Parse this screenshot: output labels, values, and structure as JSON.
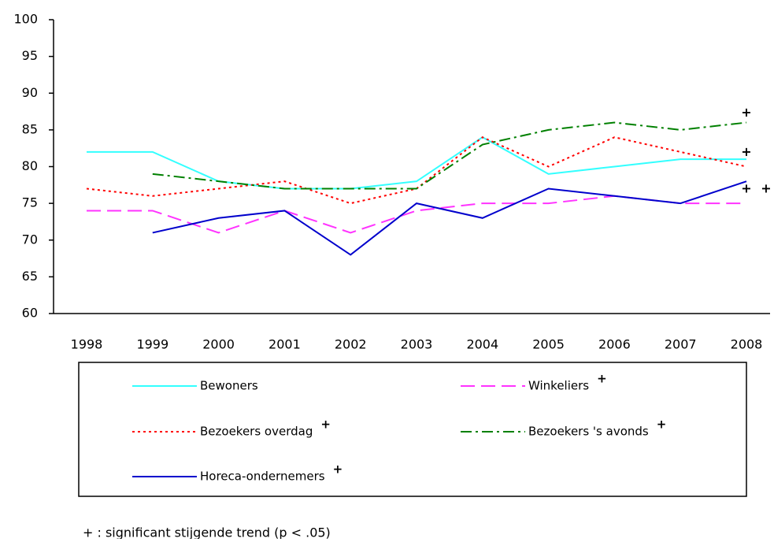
{
  "chart_data": {
    "type": "line",
    "categories": [
      "1998",
      "1999",
      "2000",
      "2001",
      "2002",
      "2003",
      "2004",
      "2005",
      "2006",
      "2007",
      "2008"
    ],
    "series": [
      {
        "name": "Bewoners",
        "color": "#33ffff",
        "dash": "solid",
        "values": [
          82,
          82,
          78,
          77,
          77,
          78,
          84,
          79,
          80,
          81,
          81
        ]
      },
      {
        "name": "Winkeliers",
        "color": "#ff33ff",
        "dash": "dashed",
        "significance_marker": "+",
        "values": [
          74,
          74,
          71,
          74,
          71,
          74,
          75,
          75,
          76,
          75,
          75
        ]
      },
      {
        "name": "Bezoekers overdag",
        "color": "#ff0000",
        "dash": "dotted",
        "significance_marker": "+",
        "values": [
          77,
          76,
          77,
          78,
          75,
          77,
          84,
          80,
          84,
          82,
          80
        ]
      },
      {
        "name": "Bezoekers 's avonds",
        "color": "#008000",
        "dash": "dashdot",
        "significance_marker": "+",
        "values": [
          null,
          79,
          78,
          77,
          77,
          77,
          83,
          85,
          86,
          85,
          86
        ]
      },
      {
        "name": "Horeca-ondernemers",
        "color": "#0000cc",
        "dash": "solid",
        "significance_marker": "+",
        "values": [
          null,
          71,
          73,
          74,
          68,
          75,
          73,
          77,
          76,
          75,
          78
        ]
      }
    ],
    "ylim": [
      60,
      100
    ],
    "yticks": [
      60,
      65,
      70,
      75,
      80,
      85,
      90,
      95,
      100
    ],
    "footnote": "+ : significant stijgende trend (p < .05)"
  }
}
